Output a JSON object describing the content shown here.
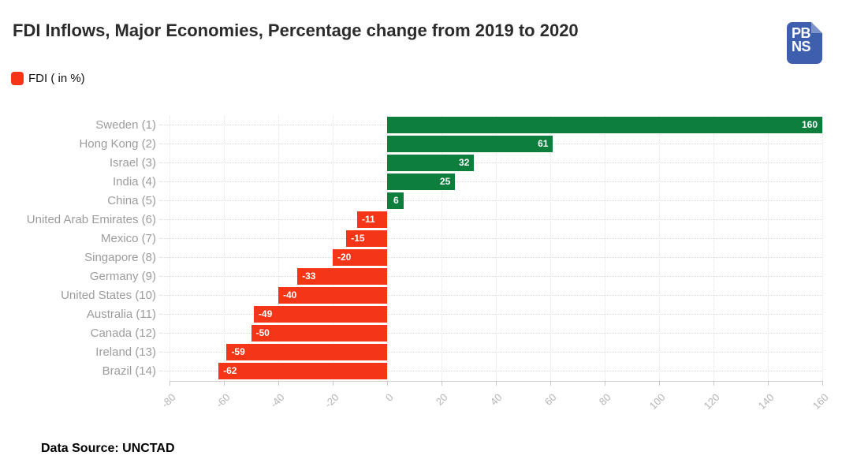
{
  "header": {
    "title": "FDI Inflows, Major Economies, Percentage change from 2019 to 2020",
    "logo": {
      "line1": "PB",
      "line2": "NS",
      "bg_color": "#3d5fae",
      "fold_color": "#7e92cb"
    }
  },
  "legend": {
    "label": "FDI ( in %)",
    "swatch_color": "#f43517"
  },
  "footer": {
    "source": "Data Source: UNCTAD"
  },
  "colors": {
    "positive_bar": "#0e7e3d",
    "negative_bar": "#f43517",
    "bar_label": "#ffffff",
    "category_label": "#9c9c9c",
    "tick_label": "#b5b5b5",
    "title": "#2b2b2b"
  },
  "chart_data": {
    "type": "bar",
    "orientation": "horizontal",
    "title": "FDI Inflows, Major Economies, Percentage change from 2019 to 2020",
    "series_label": "FDI ( in %)",
    "categories": [
      "Sweden (1)",
      "Hong Kong (2)",
      "Israel (3)",
      "India (4)",
      "China (5)",
      "United Arab Emirates (6)",
      "Mexico (7)",
      "Singapore (8)",
      "Germany (9)",
      "United States (10)",
      "Australia (11)",
      "Canada (12)",
      "Ireland (13)",
      "Brazil (14)"
    ],
    "values": [
      160,
      61,
      32,
      25,
      6,
      -11,
      -15,
      -20,
      -33,
      -40,
      -49,
      -50,
      -59,
      -62
    ],
    "xlim": [
      -80,
      160
    ],
    "xticks": [
      -80,
      -60,
      -40,
      -20,
      0,
      20,
      40,
      60,
      80,
      100,
      120,
      140,
      160
    ],
    "xlabel": "",
    "ylabel": "",
    "grid": "vertical-dotted-with-row-leaders",
    "legend_position": "top-left",
    "value_labels": "inside-bar-end",
    "source": "UNCTAD"
  }
}
